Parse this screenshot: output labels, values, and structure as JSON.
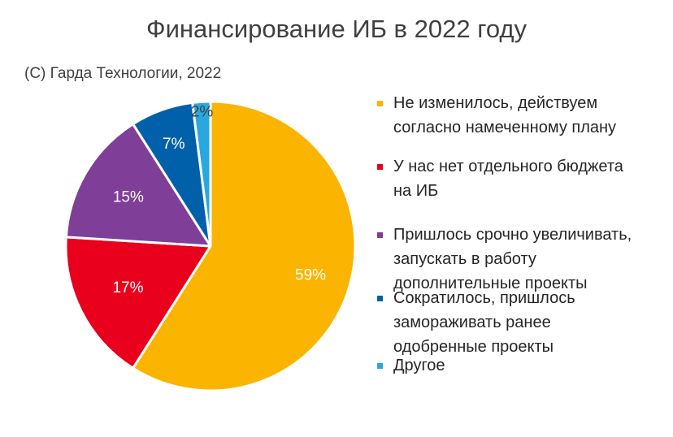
{
  "chart_data": {
    "type": "pie",
    "title": "Финансирование  ИБ в 2022 году",
    "subtitle": "(C) Гарда Технологии, 2022",
    "slices": [
      {
        "label": "Не изменилось, действуем согласно намеченному плану",
        "value": 59,
        "display": "59%",
        "color": "#FBB400",
        "label_color": "#ffffff"
      },
      {
        "label": "У нас нет отдельного бюджета на ИБ",
        "value": 17,
        "display": "17%",
        "color": "#E8001C",
        "label_color": "#ffffff"
      },
      {
        "label": "Пришлось срочно увеличивать, запускать в работу дополнительные проекты",
        "value": 15,
        "display": "15%",
        "color": "#7F3F98",
        "label_color": "#ffffff"
      },
      {
        "label": "Сократилось, пришлось замораживать ранее одобренные проекты",
        "value": 7,
        "display": "7%",
        "color": "#0061AA",
        "label_color": "#ffffff"
      },
      {
        "label": "Другое",
        "value": 2,
        "display": "2%",
        "color": "#29A8E0",
        "label_color": "#404040"
      }
    ],
    "legend": {
      "position": "right",
      "items": [
        "Не изменилось, действуем\nсогласно намеченному плану",
        "У нас нет отдельного бюджета\nна ИБ",
        "Пришлось срочно увеличивать,\nзапускать в работу\nдополнительные проекты",
        "Сократилось, пришлось\nзамораживать ранее\nодобренные проекты",
        "Другое"
      ]
    },
    "start_angle_deg": 0,
    "direction": "clockwise"
  }
}
